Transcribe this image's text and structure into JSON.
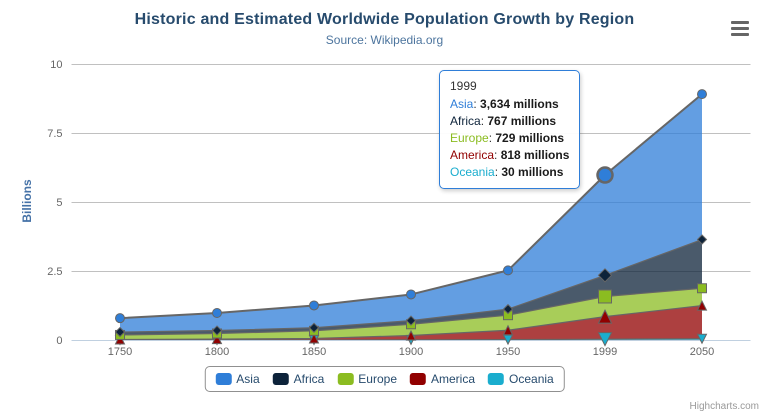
{
  "header": {
    "title": "Historic and Estimated Worldwide Population Growth by Region",
    "subtitle": "Source: Wikipedia.org"
  },
  "icons": {
    "context_menu": "hamburger-icon"
  },
  "chart_data": {
    "type": "area",
    "stacking": "normal",
    "title": "Historic and Estimated Worldwide Population Growth by Region",
    "subtitle": "Source: Wikipedia.org",
    "xlabel": "",
    "ylabel": "Billions",
    "ylim": [
      0,
      10
    ],
    "yticks": [
      0,
      2.5,
      5,
      7.5,
      10
    ],
    "ytick_labels": [
      "0",
      "2.5",
      "5",
      "7.5",
      "10"
    ],
    "categories": [
      "1750",
      "1800",
      "1850",
      "1900",
      "1950",
      "1999",
      "2050"
    ],
    "values_unit": "millions",
    "legend_position": "bottom",
    "grid": true,
    "grid_color": "#C0C0C0",
    "axis_line_color": "#C0D0E0",
    "tick_label_color": "#666666",
    "series_line_color": "#666666",
    "fill_opacity": 0.75,
    "hover_category_index": 5,
    "series": [
      {
        "name": "Asia",
        "color": "#2f7ed8",
        "marker": "circle",
        "values": [
          502,
          635,
          809,
          947,
          1402,
          3634,
          5268
        ]
      },
      {
        "name": "Africa",
        "color": "#0d233a",
        "marker": "diamond",
        "values": [
          106,
          107,
          111,
          133,
          221,
          767,
          1766
        ]
      },
      {
        "name": "Europe",
        "color": "#8bbc21",
        "marker": "square",
        "values": [
          163,
          203,
          276,
          408,
          547,
          729,
          628
        ]
      },
      {
        "name": "America",
        "color": "#910000",
        "marker": "triangle",
        "values": [
          18,
          31,
          54,
          156,
          339,
          818,
          1201
        ]
      },
      {
        "name": "Oceania",
        "color": "#1aadce",
        "marker": "triangle-down",
        "values": [
          2,
          2,
          2,
          6,
          13,
          30,
          46
        ]
      }
    ]
  },
  "tooltip": {
    "header": "1999",
    "separator": ": ",
    "border_color": "#2f7ed8",
    "rows": [
      {
        "name": "Asia",
        "value": "3,634 millions"
      },
      {
        "name": "Africa",
        "value": "767 millions"
      },
      {
        "name": "Europe",
        "value": "729 millions"
      },
      {
        "name": "America",
        "value": "818 millions"
      },
      {
        "name": "Oceania",
        "value": "30 millions"
      }
    ]
  },
  "credits": "Highcharts.com"
}
